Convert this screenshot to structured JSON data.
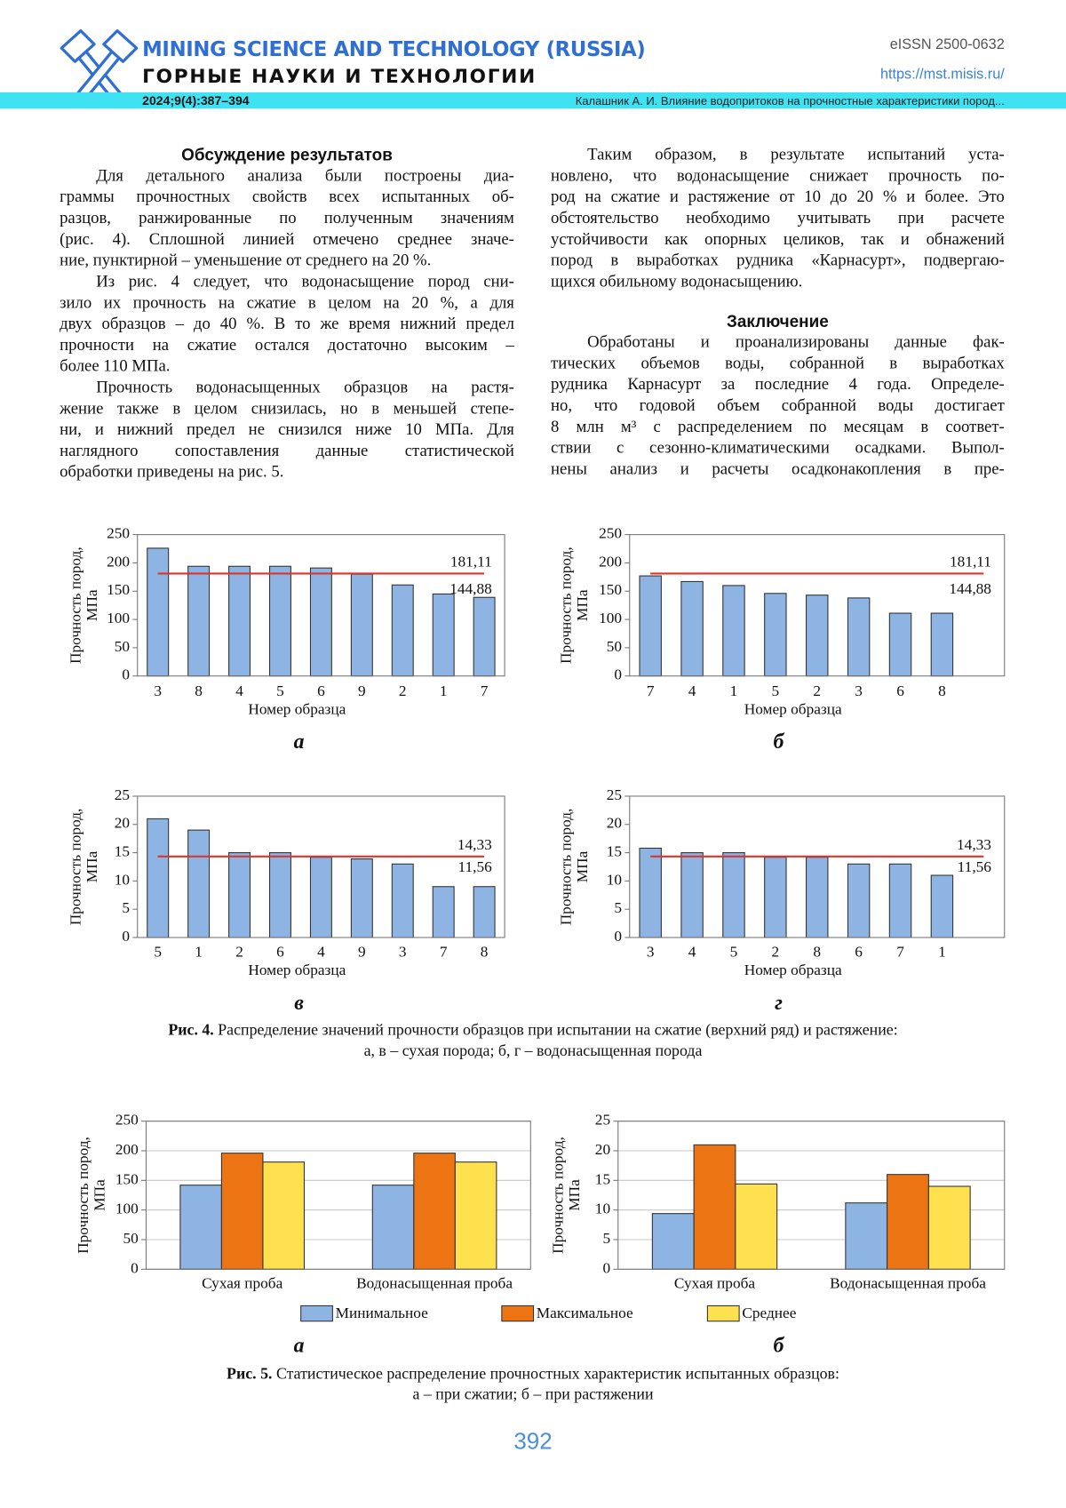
{
  "header": {
    "journal": "MINING SCIENCE AND TECHNOLOGY (RUSSIA)",
    "journal_ru": "ГОРНЫЕ НАУКИ И ТЕХНОЛОГИИ",
    "issue": "2024;9(4):387–394",
    "eissn": "eISSN 2500-0632",
    "url": "https://mst.misis.ru/",
    "running_title": "Калашник А. И. Влияние водопритоков на прочностные характеристики пород..."
  },
  "columns": [
    [
      {
        "heading": "Обсуждение результатов"
      },
      {
        "lines": [
          "Для детального анализа были построены диа-",
          "граммы прочностных свойств всех испытанных об-",
          "разцов, ранжированные по полученным значениям",
          "(рис. 4). Сплошной линией отмечено среднее значе-",
          "ние, пунктирной – уменьшение от среднего на 20 %."
        ]
      },
      {
        "lines": [
          "Из рис. 4 следует, что водонасыщение пород сни-",
          "зило их прочность на сжатие в целом на 20 %, а для",
          "двух образцов – до 40 %. В то же время нижний предел",
          "прочности на сжатие остался достаточно высоким –",
          "более 110 МПа."
        ]
      },
      {
        "lines": [
          "Прочность водонасыщенных образцов на растя-",
          "жение также в целом снизилась, но в меньшей степе-",
          "ни, и нижний предел не снизился ниже 10 МПа. Для",
          "наглядного сопоставления данные статистической",
          "обработки приведены на рис. 5."
        ]
      }
    ],
    [
      {
        "lines": [
          "Таким образом, в результате испытаний уста-",
          "новлено, что водонасыщение снижает прочность по-",
          "род на сжатие и растяжение от 10 до 20 % и более. Это",
          "обстоятельство необходимо учитывать при расчете",
          "устойчивости как опорных целиков, так и обнажений",
          "пород в выработках рудника «Карнасурт», подвергаю-",
          "щихся обильному водонасыщению."
        ]
      },
      {
        "heading": "Заключение"
      },
      {
        "lines": [
          "Обработаны и проанализированы данные фак-",
          "тических объемов воды, собранной в выработках",
          "рудника Карнасурт за последние 4 года. Определе-",
          "но, что годовой объем собранной воды достигает",
          "8 млн м³ с распределением по месяцам в соответ-",
          "ствии с сезонно-климатическими осадками. Выпол-",
          "нены анализ и расчеты осадконакопления в пре-"
        ]
      }
    ]
  ],
  "figures": [
    {
      "label": "Рис. 4.",
      "caption": [
        "Распределение значений прочности образцов при испытании на сжатие (верхний ряд) и растяжение:",
        "а, в – сухая порода; б, г – водонасыщенная порода"
      ]
    },
    {
      "label": "Рис. 5.",
      "caption": [
        "Статистическое распределение прочностных характеристик испытанных образцов:",
        "а – при сжатии; б – при растяжении"
      ]
    }
  ],
  "chart_data": [
    {
      "type": "bar",
      "panel": "а",
      "y_label": [
        "Прочность пород,",
        "МПа"
      ],
      "x_label": "Номер образца",
      "categories": [
        "3",
        "8",
        "4",
        "5",
        "6",
        "9",
        "2",
        "1",
        "7"
      ],
      "values": [
        226,
        194,
        194,
        194,
        191,
        180,
        161,
        145,
        139
      ],
      "color": "#8db4e2",
      "ylim": [
        0,
        250
      ],
      "yticks": [
        0,
        50,
        100,
        150,
        200,
        250
      ],
      "grid": false,
      "mean_line": {
        "value": 181.11,
        "label": "181,11",
        "color": "#d9362f"
      },
      "annotation": {
        "value": 144.88,
        "label": "144,88"
      }
    },
    {
      "type": "bar",
      "panel": "б",
      "y_label": [
        "Прочность пород,",
        "МПа"
      ],
      "x_label": "Номер образца",
      "categories": [
        "7",
        "4",
        "1",
        "5",
        "2",
        "3",
        "6",
        "8",
        null
      ],
      "values": [
        177,
        167,
        160,
        146,
        143,
        138,
        111,
        111,
        null
      ],
      "color": "#8db4e2",
      "ylim": [
        0,
        250
      ],
      "yticks": [
        0,
        50,
        100,
        150,
        200,
        250
      ],
      "grid": false,
      "mean_line": {
        "value": 181.11,
        "label": "181,11",
        "color": "#d9362f"
      },
      "annotation": {
        "value": 144.88,
        "label": "144,88"
      }
    },
    {
      "type": "bar",
      "panel": "в",
      "y_label": [
        "Прочность пород,",
        "МПа"
      ],
      "x_label": "Номер образца",
      "categories": [
        "5",
        "1",
        "2",
        "6",
        "4",
        "9",
        "3",
        "7",
        "8"
      ],
      "values": [
        21,
        19,
        15,
        15,
        14.2,
        13.9,
        13,
        9,
        9
      ],
      "color": "#8db4e2",
      "ylim": [
        0,
        25
      ],
      "yticks": [
        0,
        5,
        10,
        15,
        20,
        25
      ],
      "grid": false,
      "mean_line": {
        "value": 14.33,
        "label": "14,33",
        "color": "#d9362f"
      },
      "annotation": {
        "value": 11.56,
        "label": "11,56"
      }
    },
    {
      "type": "bar",
      "panel": "г",
      "y_label": [
        "Прочность пород,",
        "МПа"
      ],
      "x_label": "Номер образца",
      "categories": [
        "3",
        "4",
        "5",
        "2",
        "8",
        "6",
        "7",
        "1",
        null
      ],
      "values": [
        15.8,
        15,
        15,
        14.2,
        14.2,
        13,
        13,
        11,
        null
      ],
      "color": "#8db4e2",
      "ylim": [
        0,
        25
      ],
      "yticks": [
        0,
        5,
        10,
        15,
        20,
        25
      ],
      "grid": false,
      "mean_line": {
        "value": 14.33,
        "label": "14,33",
        "color": "#d9362f"
      },
      "annotation": {
        "value": 11.56,
        "label": "11,56"
      }
    },
    {
      "type": "grouped_bar",
      "panel": "а",
      "y_label": [
        "Прочность пород,",
        "МПа"
      ],
      "categories": [
        "Сухая проба",
        "Водонасыщенная проба"
      ],
      "series": [
        {
          "name": "Минимальное",
          "color": "#8db4e2",
          "values": [
            142,
            142
          ]
        },
        {
          "name": "Максимальное",
          "color": "#ec7412",
          "values": [
            196,
            196
          ]
        },
        {
          "name": "Среднее",
          "color": "#ffe04f",
          "values": [
            181,
            181
          ]
        }
      ],
      "ylim": [
        0,
        250
      ],
      "yticks": [
        0,
        50,
        100,
        150,
        200,
        250
      ],
      "grid": true
    },
    {
      "type": "grouped_bar",
      "panel": "б",
      "y_label": [
        "Прочность пород,",
        "МПа"
      ],
      "categories": [
        "Сухая проба",
        "Водонасыщенная проба"
      ],
      "series": [
        {
          "color": "#8db4e2",
          "values": [
            9.4,
            11.2
          ]
        },
        {
          "color": "#ec7412",
          "values": [
            21,
            16
          ]
        },
        {
          "color": "#ffe04f",
          "values": [
            14.4,
            14
          ]
        }
      ],
      "ylim": [
        0,
        25
      ],
      "yticks": [
        0,
        5,
        10,
        15,
        20,
        25
      ],
      "grid": true
    }
  ],
  "page_number": "392"
}
